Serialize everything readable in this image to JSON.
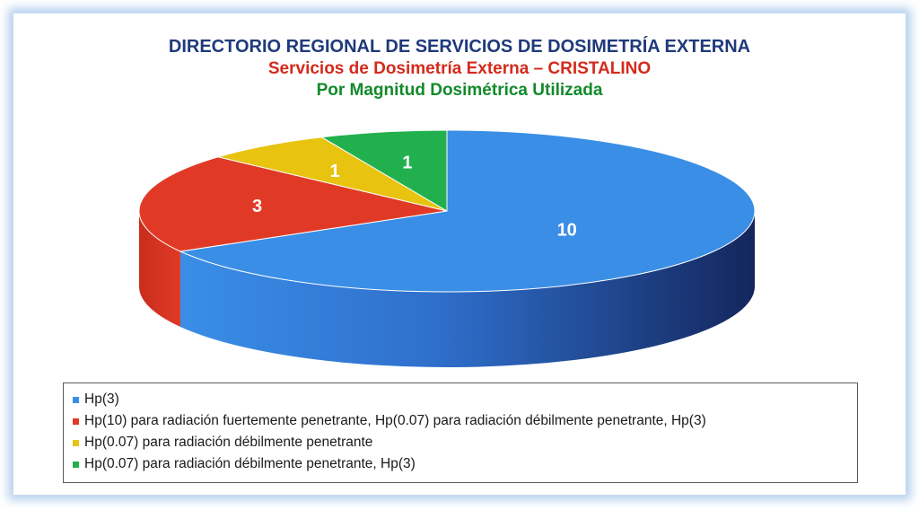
{
  "title": "DIRECTORIO REGIONAL DE SERVICIOS DE DOSIMETRÍA EXTERNA",
  "subtitle": "Servicios de Dosimetría Externa – CRISTALINO",
  "subtitle2": "Por Magnitud Dosimétrica Utilizada",
  "colors": {
    "blue": "#3a8ee6",
    "red": "#e03a26",
    "yellow": "#e8c310",
    "green": "#22b04e"
  },
  "chart_data": {
    "type": "pie",
    "style": "3d",
    "title": "DIRECTORIO REGIONAL DE SERVICIOS DE DOSIMETRÍA EXTERNA",
    "legend_position": "bottom",
    "slices": [
      {
        "label": "Hp(3)",
        "value": 10,
        "data_label": "10",
        "color": "#3a8ee6"
      },
      {
        "label": "Hp(10) para radiación fuertemente penetrante, Hp(0.07) para radiación débilmente penetrante, Hp(3)",
        "value": 3,
        "data_label": "3",
        "color": "#e03a26"
      },
      {
        "label": "Hp(0.07) para radiación débilmente penetrante",
        "value": 1,
        "data_label": "1",
        "color": "#e8c310"
      },
      {
        "label": "Hp(0.07) para radiación débilmente penetrante, Hp(3)",
        "value": 1,
        "data_label": "1",
        "color": "#22b04e"
      }
    ]
  }
}
